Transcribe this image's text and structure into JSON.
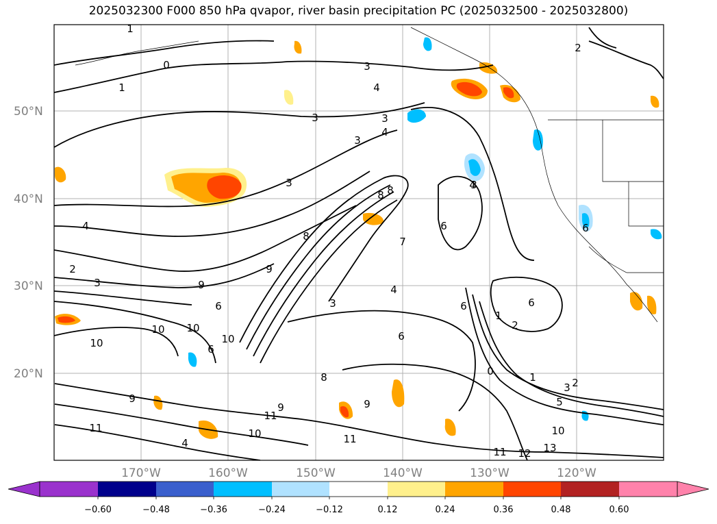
{
  "title": "2025032300 F000 850 hPa qvapor, river basin precipitation PC (2025032500 - 2025032800)",
  "lat_ticks": [
    "50°N",
    "40°N",
    "30°N",
    "20°N"
  ],
  "lon_ticks": [
    "170°W",
    "160°W",
    "150°W",
    "140°W",
    "130°W",
    "120°W"
  ],
  "colorbar": {
    "ticks": [
      "−0.60",
      "−0.48",
      "−0.36",
      "−0.24",
      "−0.12",
      "0.12",
      "0.24",
      "0.36",
      "0.48",
      "0.60"
    ],
    "colors": [
      "#9a32cd",
      "#00008b",
      "#3a5fcd",
      "#00bfff",
      "#b0e2ff",
      "#ffffff",
      "#fff08c",
      "#ffa500",
      "#ff4500",
      "#b22222",
      "#ff82ab"
    ]
  },
  "contour_labels": [
    "1",
    "0",
    "1",
    "3",
    "4",
    "3",
    "3",
    "4",
    "3",
    "2",
    "3",
    "4",
    "2",
    "3",
    "4",
    "8",
    "8",
    "8",
    "7",
    "3",
    "9",
    "9",
    "9",
    "10",
    "10",
    "10",
    "10",
    "6",
    "6",
    "6",
    "6",
    "9",
    "8",
    "9",
    "10",
    "11",
    "11",
    "10",
    "11",
    "11",
    "12",
    "13",
    "5",
    "3",
    "2",
    "1",
    "0",
    "1",
    "2",
    "6",
    "6",
    "3",
    "4",
    "4",
    "6"
  ]
}
